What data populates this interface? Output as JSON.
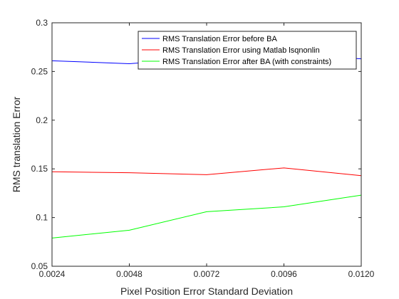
{
  "chart_data": {
    "type": "line",
    "title": "",
    "xlabel": "Pixel Position Error Standard Deviation",
    "ylabel": "RMS translation Error",
    "x": [
      0.0024,
      0.0048,
      0.0072,
      0.0096,
      0.012
    ],
    "x_tick_labels": [
      "0.0024",
      "0.0048",
      "0.0072",
      "0.0096",
      "0.0120"
    ],
    "xlim": [
      0.0024,
      0.012
    ],
    "y_ticks": [
      0.05,
      0.1,
      0.15,
      0.2,
      0.25,
      0.3
    ],
    "y_tick_labels": [
      "0.05",
      "0.1",
      "0.15",
      "0.2",
      "0.25",
      "0.3"
    ],
    "ylim": [
      0.05,
      0.3
    ],
    "grid": false,
    "legend_position": "top-right",
    "series": [
      {
        "name": "RMS Translation Error before BA",
        "color": "#0000ff",
        "values": [
          0.261,
          0.258,
          0.264,
          0.268,
          0.263
        ]
      },
      {
        "name": "RMS Translation Error using Matlab lsqnonlin",
        "color": "#ff0000",
        "values": [
          0.147,
          0.146,
          0.144,
          0.151,
          0.143
        ]
      },
      {
        "name": "RMS Translation Error after BA (with constraints)",
        "color": "#00ff00",
        "values": [
          0.079,
          0.087,
          0.106,
          0.111,
          0.123
        ]
      }
    ]
  }
}
